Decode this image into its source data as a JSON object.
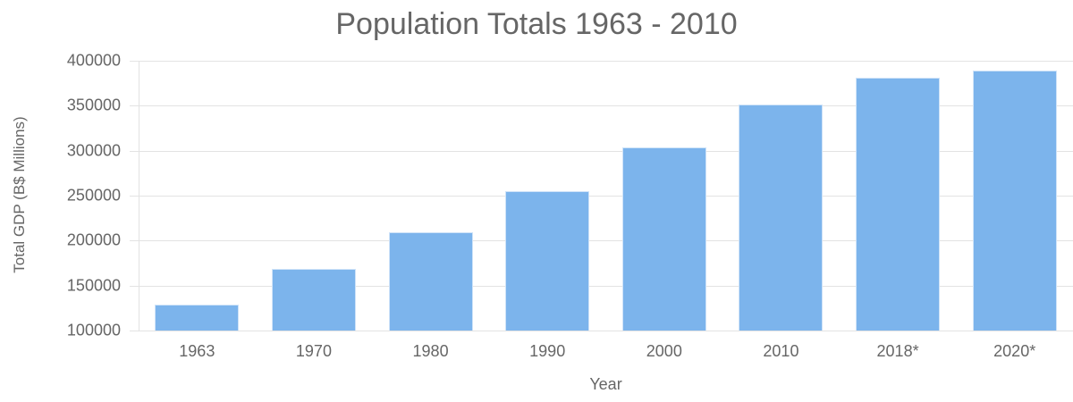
{
  "chart_data": {
    "type": "bar",
    "title": "Population Totals 1963 - 2010",
    "xlabel": "Year",
    "ylabel": "Total GDP (B$ Millions)",
    "categories": [
      "1963",
      "1970",
      "1980",
      "1990",
      "2000",
      "2010",
      "2018*",
      "2020*"
    ],
    "values": [
      129000,
      168500,
      209000,
      255000,
      303500,
      351500,
      381000,
      389500
    ],
    "ylim": [
      100000,
      400000
    ],
    "yticks": [
      "400000",
      "350000",
      "300000",
      "250000",
      "200000",
      "150000",
      "100000"
    ],
    "grid": true,
    "legend": null,
    "bar_color": "#7cb4ec"
  }
}
